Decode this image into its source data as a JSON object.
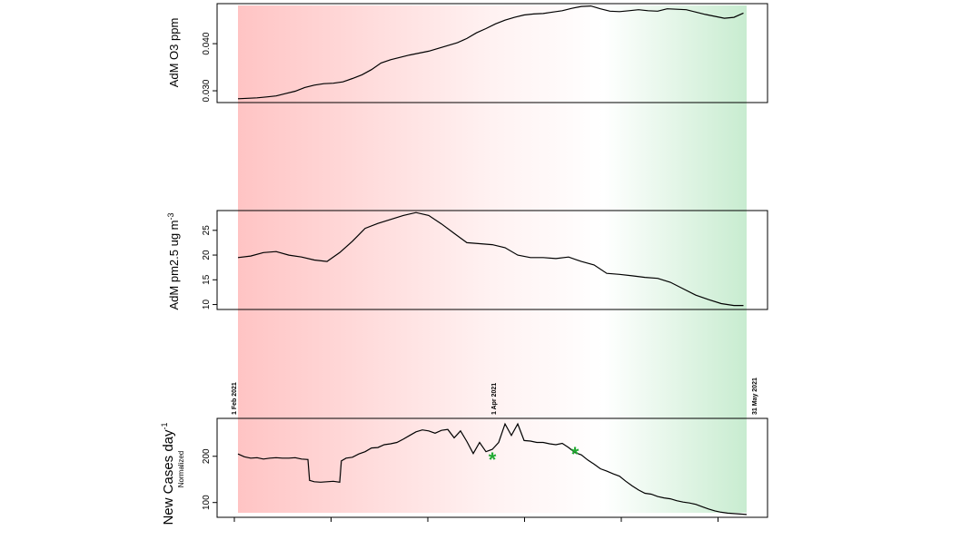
{
  "colors": {
    "start_band": "#ffc4c4",
    "end_band": "#c8ecd0",
    "line": "#000000",
    "marker": "#22aa33"
  },
  "chart_data": [
    {
      "type": "line",
      "ylabel": "AdM O3 ppm",
      "ylim": [
        0.0275,
        0.0485
      ],
      "yticks": [
        "0.030",
        "0.040"
      ],
      "ytick_values": [
        0.03,
        0.04
      ],
      "x_unit": "days since start of window",
      "x": [
        0,
        3,
        6,
        9,
        12,
        15,
        18,
        21,
        24,
        27,
        30,
        33,
        36,
        39,
        42,
        45,
        48,
        51,
        54,
        57,
        60,
        63,
        66,
        69,
        72,
        75,
        78,
        81,
        84,
        87,
        90,
        93,
        96,
        99,
        102,
        105,
        108,
        111,
        114,
        117,
        120,
        123,
        126,
        129,
        132,
        135,
        138,
        141,
        144,
        147,
        150,
        153,
        156,
        159
      ],
      "y": [
        0.0283,
        0.0284,
        0.0285,
        0.0287,
        0.0289,
        0.0294,
        0.0299,
        0.0307,
        0.0312,
        0.0315,
        0.0316,
        0.0319,
        0.0326,
        0.0334,
        0.0345,
        0.0359,
        0.0366,
        0.0371,
        0.0376,
        0.038,
        0.0384,
        0.039,
        0.0396,
        0.0402,
        0.0411,
        0.0423,
        0.0432,
        0.0442,
        0.045,
        0.0456,
        0.0461,
        0.0463,
        0.0464,
        0.0467,
        0.047,
        0.0475,
        0.0479,
        0.048,
        0.0474,
        0.0469,
        0.0468,
        0.047,
        0.0472,
        0.047,
        0.0469,
        0.0474,
        0.0473,
        0.0472,
        0.0467,
        0.0462,
        0.0458,
        0.0454,
        0.0456,
        0.0465
      ]
    },
    {
      "type": "line",
      "ylabel": "AdM pm2.5 ug m",
      "ylabel_sup": "-3",
      "ylim": [
        9,
        29
      ],
      "yticks": [
        "10",
        "15",
        "20",
        "25"
      ],
      "ytick_values": [
        10,
        15,
        20,
        25
      ],
      "x_unit": "days since start of window",
      "x": [
        0,
        4,
        8,
        12,
        16,
        20,
        24,
        28,
        32,
        36,
        40,
        44,
        48,
        52,
        56,
        60,
        64,
        68,
        72,
        76,
        80,
        84,
        88,
        92,
        96,
        100,
        104,
        108,
        112,
        116,
        120,
        124,
        128,
        132,
        136,
        140,
        144,
        148,
        152,
        156,
        159
      ],
      "y": [
        19.5,
        19.8,
        20.5,
        20.7,
        20.0,
        19.6,
        19.0,
        18.7,
        20.5,
        22.8,
        25.4,
        26.4,
        27.2,
        28.0,
        28.6,
        28.0,
        26.3,
        24.4,
        22.5,
        22.3,
        22.1,
        21.5,
        20.0,
        19.5,
        19.5,
        19.3,
        19.6,
        18.7,
        18.0,
        16.3,
        16.1,
        15.8,
        15.5,
        15.3,
        14.5,
        13.2,
        11.9,
        11.0,
        10.2,
        9.8,
        9.8
      ]
    },
    {
      "type": "line",
      "ylabel": "New Cases day",
      "ylabel_sup": "-1",
      "ylabel_sub": "Normalized",
      "ylim": [
        68,
        282
      ],
      "yticks": [
        "100",
        "200"
      ],
      "ytick_values": [
        100,
        200
      ],
      "date_labels": [
        "1 Feb 2021",
        "1 Apr 2021",
        "31 May 2021"
      ],
      "date_label_x": [
        0,
        80,
        160
      ],
      "x_unit": "days since start of window",
      "x": [
        0,
        2,
        4,
        6,
        8,
        10,
        12,
        14,
        16,
        18,
        20,
        22,
        22.5,
        24,
        26,
        28,
        30,
        32,
        32.5,
        34,
        36,
        38,
        40,
        42,
        44,
        46,
        48,
        50,
        52,
        54,
        56,
        58,
        60,
        62,
        64,
        66,
        68,
        70,
        72,
        74,
        76,
        78,
        80,
        82,
        84,
        86,
        88,
        90,
        92,
        94,
        96,
        98,
        100,
        102,
        104,
        106,
        108,
        110,
        112,
        114,
        116,
        118,
        120,
        122,
        124,
        126,
        128,
        130,
        132,
        134,
        136,
        138,
        140,
        142,
        144,
        146,
        148,
        150,
        152,
        154,
        156,
        158,
        160
      ],
      "y": [
        205,
        199,
        196,
        197,
        194,
        196,
        197,
        196,
        196,
        197,
        194,
        193,
        148,
        145,
        144,
        145,
        146,
        144,
        190,
        196,
        198,
        205,
        210,
        218,
        219,
        225,
        227,
        230,
        237,
        245,
        253,
        257,
        255,
        250,
        256,
        258,
        240,
        255,
        232,
        206,
        230,
        210,
        215,
        230,
        270,
        245,
        270,
        234,
        233,
        230,
        230,
        227,
        225,
        228,
        219,
        208,
        203,
        192,
        183,
        173,
        168,
        162,
        157,
        146,
        136,
        127,
        120,
        118,
        113,
        110,
        108,
        104,
        101,
        99,
        96,
        91,
        86,
        82,
        79,
        77,
        76,
        75,
        74
      ]
    }
  ],
  "markers": [
    {
      "label": "*",
      "x": 80,
      "y": 200
    },
    {
      "label": "*",
      "x": 106,
      "y": 211
    }
  ]
}
